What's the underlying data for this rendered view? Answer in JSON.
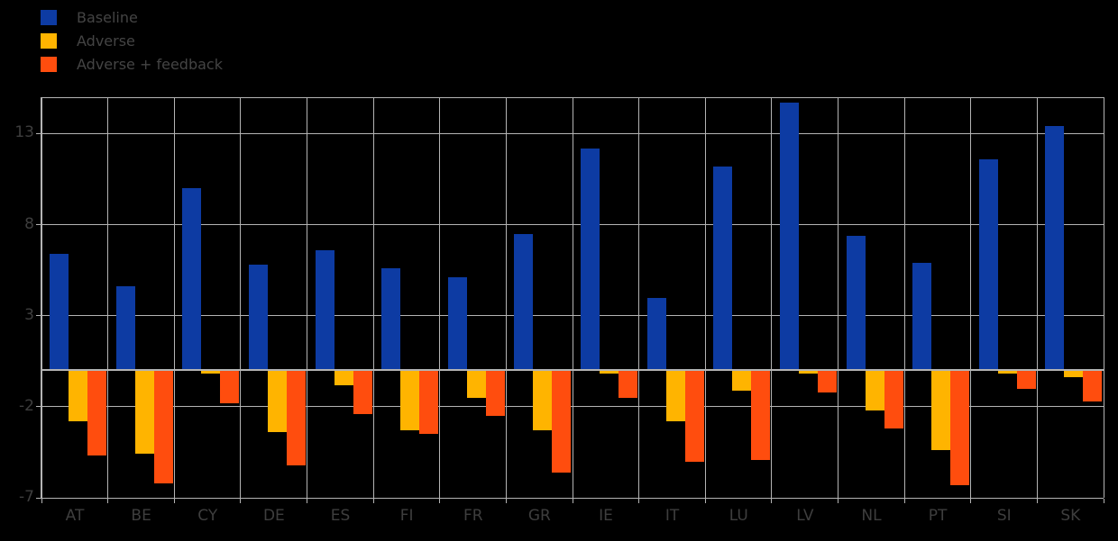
{
  "legend": {
    "items": [
      {
        "label": "Baseline",
        "color": "#0d3ba3"
      },
      {
        "label": "Adverse",
        "color": "#ffb400"
      },
      {
        "label": "Adverse + feedback",
        "color": "#ff4d0e"
      }
    ]
  },
  "chart_data": {
    "type": "bar",
    "title": "",
    "xlabel": "",
    "ylabel": "",
    "categories": [
      "AT",
      "BE",
      "CY",
      "DE",
      "ES",
      "FI",
      "FR",
      "GR",
      "IE",
      "IT",
      "LU",
      "LV",
      "NL",
      "PT",
      "SI",
      "SK"
    ],
    "series": [
      {
        "name": "Baseline",
        "color": "#0d3ba3",
        "values": [
          6.4,
          4.6,
          10.0,
          5.8,
          6.6,
          5.6,
          5.1,
          7.5,
          12.2,
          4.0,
          11.2,
          14.7,
          7.4,
          5.9,
          11.6,
          13.4
        ]
      },
      {
        "name": "Adverse",
        "color": "#ffb400",
        "values": [
          -2.8,
          -4.6,
          -0.2,
          -3.4,
          -0.8,
          -3.3,
          -1.5,
          -3.3,
          -0.2,
          -2.8,
          -1.1,
          -0.2,
          -2.2,
          -4.4,
          -0.2,
          -0.4
        ]
      },
      {
        "name": "Adverse + feedback",
        "color": "#ff4d0e",
        "values": [
          -4.7,
          -6.2,
          -1.8,
          -5.2,
          -2.4,
          -3.5,
          -2.5,
          -5.6,
          -1.5,
          -5.0,
          -4.9,
          -1.2,
          -3.2,
          -6.3,
          -1.0,
          -1.7
        ]
      }
    ],
    "ylim": [
      -7,
      15
    ],
    "yticks": [
      13,
      8,
      3,
      -2,
      -7
    ],
    "ytick_labels": [
      "13",
      "8",
      "3",
      "-2",
      "-7"
    ],
    "zero_line": 0,
    "grid": "on",
    "legend_position": "top-left",
    "background_color": "#000000",
    "grid_color": "#b4b4b4",
    "text_color": "#3e3e3e"
  }
}
